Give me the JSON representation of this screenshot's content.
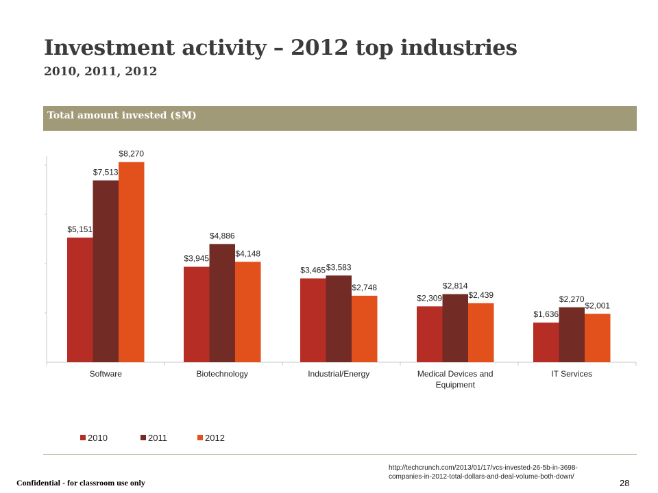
{
  "slide": {
    "title": "Investment activity – 2012 top industries",
    "subtitle": "2010, 2011, 2012",
    "header_label": "Total amount invested ($M)",
    "source_line1": "http://techcrunch.com/2013/01/17/vcs-invested-26-5b-in-3698-",
    "source_line2": "companies-in-2012-total-dollars-and-deal-volume-both-down/",
    "confidential": "Confidential - for classroom use only",
    "page_number": "28"
  },
  "colors": {
    "series": [
      "#b52d25",
      "#732b25",
      "#e2501c"
    ],
    "header_bar": "#a19a78"
  },
  "chart_data": {
    "type": "bar",
    "title": "Total amount invested ($M)",
    "categories": [
      "Software",
      "Biotechnology",
      "Industrial/Energy",
      "Medical Devices and Equipment",
      "IT Services"
    ],
    "series": [
      {
        "name": "2010",
        "values": [
          5151,
          3945,
          3465,
          2309,
          1636
        ],
        "labels": [
          "$5,151",
          "$3,945",
          "$3,465",
          "$2,309",
          "$1,636"
        ]
      },
      {
        "name": "2011",
        "values": [
          7513,
          4886,
          3583,
          2814,
          2270
        ],
        "labels": [
          "$7,513",
          "$4,886",
          "$3,583",
          "$2,814",
          "$2,270"
        ]
      },
      {
        "name": "2012",
        "values": [
          8270,
          4148,
          2748,
          2439,
          2001
        ],
        "labels": [
          "$8,270",
          "$4,148",
          "$2,748",
          "$2,439",
          "$2,001"
        ]
      }
    ],
    "ylim": [
      0,
      8800
    ],
    "grid": false,
    "legend_position": "bottom-left"
  }
}
